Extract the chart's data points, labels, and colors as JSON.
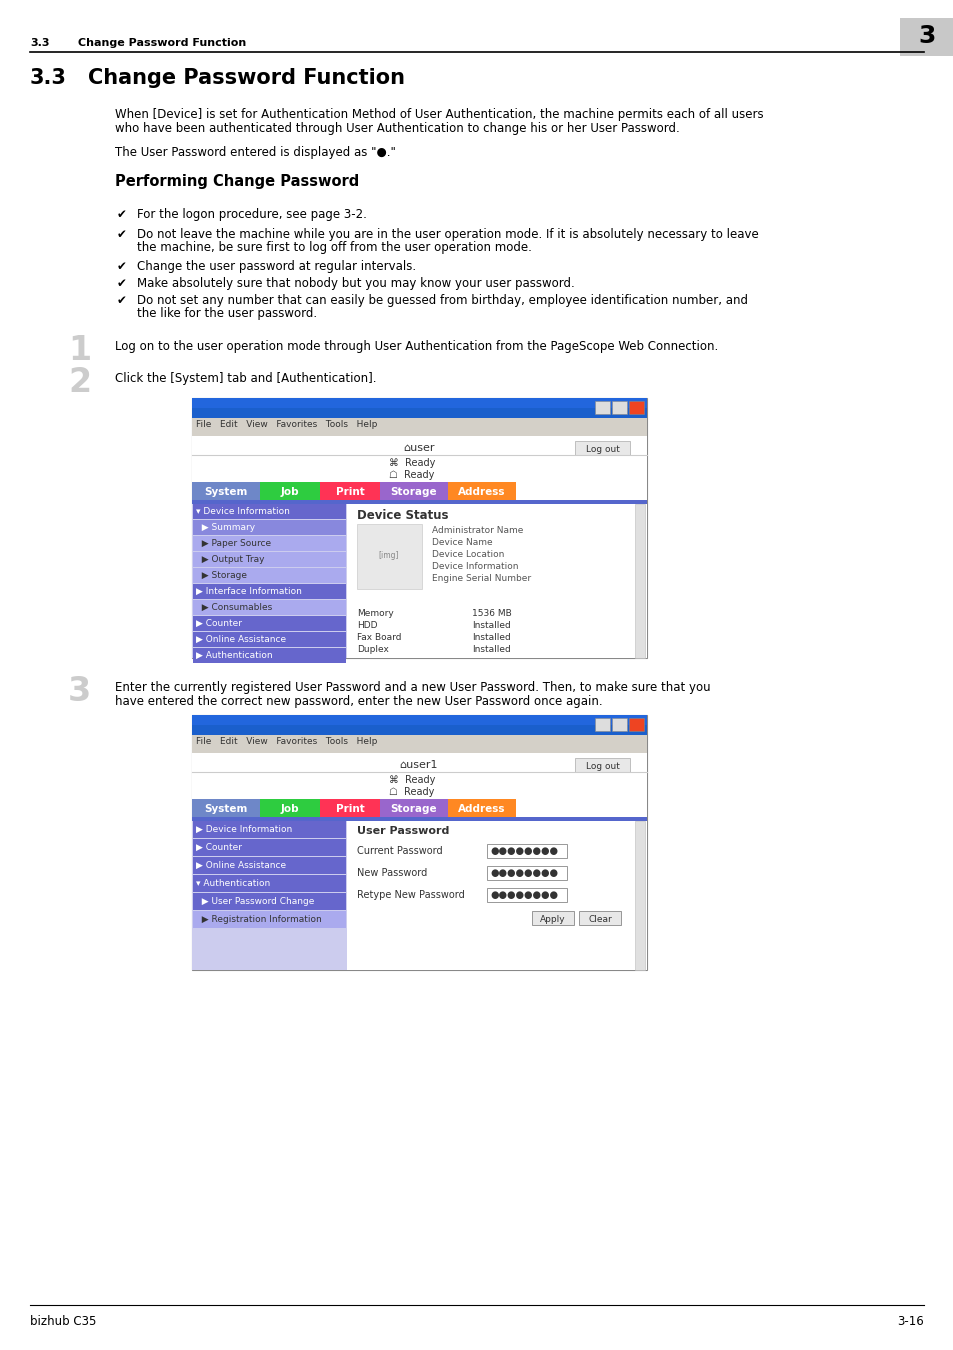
{
  "page_bg": "#ffffff",
  "header_num_text": "3.3",
  "header_title": "Change Password Function",
  "header_chapter": "3",
  "header_chapter_bg": "#c8c8c8",
  "section_num": "3.3",
  "section_title": "Change Password Function",
  "body_indent": 115,
  "para1_line1": "When [Device] is set for Authentication Method of User Authentication, the machine permits each of all users",
  "para1_line2": "who have been authenticated through User Authentication to change his or her User Password.",
  "para2": "The User Password entered is displayed as \"●.\"",
  "sub_title": "Performing Change Password",
  "bullet_mark": "✔",
  "bullets": [
    [
      "For the logon procedure, see page 3-2."
    ],
    [
      "Do not leave the machine while you are in the user operation mode. If it is absolutely necessary to leave",
      "the machine, be sure first to log off from the user operation mode."
    ],
    [
      "Change the user password at regular intervals."
    ],
    [
      "Make absolutely sure that nobody but you may know your user password."
    ],
    [
      "Do not set any number that can easily be guessed from birthday, employee identification number, and",
      "the like for the user password."
    ]
  ],
  "step1_num": "1",
  "step1_text": "Log on to the user operation mode through User Authentication from the PageScope Web Connection.",
  "step2_num": "2",
  "step2_text": "Click the [System] tab and [Authentication].",
  "step3_num": "3",
  "step3_line1": "Enter the currently registered User Password and a new User Password. Then, to make sure that you",
  "step3_line2": "have entered the correct new password, enter the new User Password once again.",
  "ss1_tab_labels": [
    "System",
    "Job",
    "Print",
    "Storage",
    "Address"
  ],
  "ss1_tab_colors": [
    "#6e87c8",
    "#2ecc40",
    "#ff3355",
    "#cc66ff",
    "#ff8800"
  ],
  "ss1_blue_bar": "#5566cc",
  "ss1_sidebar_items": [
    [
      "▾ Device Information",
      "#6666cc",
      "white"
    ],
    [
      "  ▶ Summary",
      "#8888dd",
      "white"
    ],
    [
      "  ▶ Paper Source",
      "#aaaaee",
      "#333333"
    ],
    [
      "  ▶ Output Tray",
      "#aaaaee",
      "#333333"
    ],
    [
      "  ▶ Storage",
      "#aaaaee",
      "#333333"
    ],
    [
      "▶ Interface Information",
      "#6666cc",
      "white"
    ],
    [
      "  ▶ Consumables",
      "#aaaaee",
      "#333333"
    ],
    [
      "▶ Counter",
      "#6666cc",
      "white"
    ],
    [
      "▶ Online Assistance",
      "#6666cc",
      "white"
    ],
    [
      "▶ Authentication",
      "#6666cc",
      "white"
    ]
  ],
  "ss1_info_labels": [
    "Administrator Name",
    "Device Name",
    "Device Location",
    "Device Information",
    "Engine Serial Number"
  ],
  "ss1_bottom": [
    [
      "Memory",
      "1536 MB"
    ],
    [
      "HDD",
      "Installed"
    ],
    [
      "Fax Board",
      "Installed"
    ],
    [
      "Duplex",
      "Installed"
    ]
  ],
  "ss2_tab_labels": [
    "System",
    "Job",
    "Print",
    "Storage",
    "Address"
  ],
  "ss2_tab_colors": [
    "#6e87c8",
    "#2ecc40",
    "#ff3355",
    "#cc66ff",
    "#ff8800"
  ],
  "ss2_sidebar_items": [
    [
      "▶ Device Information",
      "#6666cc",
      "white"
    ],
    [
      "▶ Counter",
      "#6666cc",
      "white"
    ],
    [
      "▶ Online Assistance",
      "#6666cc",
      "white"
    ],
    [
      "▾ Authentication",
      "#6666cc",
      "white"
    ],
    [
      "  ▶ User Password Change",
      "#6666cc",
      "white"
    ],
    [
      "  ▶ Registration Information",
      "#aaaaee",
      "#333333"
    ]
  ],
  "ss2_form_title": "User Password",
  "ss2_form_labels": [
    "Current Password",
    "New Password",
    "Retype New Password"
  ],
  "ss2_dots": "●●●●●●●●",
  "footer_left": "bizhub C35",
  "footer_right": "3-16"
}
